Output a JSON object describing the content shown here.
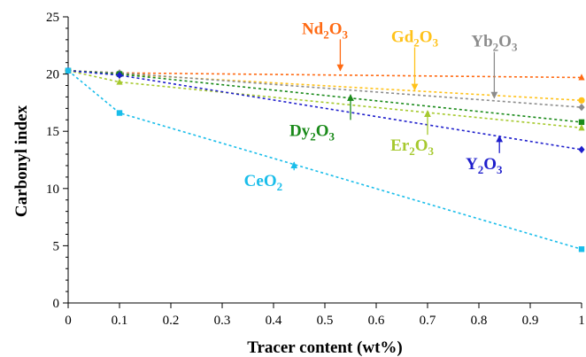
{
  "chart_data": {
    "type": "line",
    "title": "",
    "xlabel": "Tracer content (wt%)",
    "ylabel": "Carbonyl index",
    "xlim": [
      0,
      1
    ],
    "ylim": [
      0,
      25
    ],
    "x_ticks": [
      "0",
      "0.1",
      "0.2",
      "0.3",
      "0.4",
      "0.5",
      "0.6",
      "0.7",
      "0.8",
      "0.9",
      "1"
    ],
    "y_ticks": [
      "0",
      "5",
      "10",
      "15",
      "20",
      "25"
    ],
    "grid": false,
    "legend": "none (inline annotations)",
    "x": [
      0,
      0.1,
      1
    ],
    "series": [
      {
        "name": "Nd2O3",
        "label_main": "Nd",
        "label_sub1": "2",
        "label_mid": "O",
        "label_sub2": "3",
        "color": "#ff6a13",
        "marker": "triangle",
        "values": [
          20.3,
          20.1,
          19.7
        ]
      },
      {
        "name": "Gd2O3",
        "label_main": "Gd",
        "label_sub1": "2",
        "label_mid": "O",
        "label_sub2": "3",
        "color": "#ffc21a",
        "marker": "circle",
        "values": [
          20.3,
          20.0,
          17.7
        ]
      },
      {
        "name": "Yb2O3",
        "label_main": "Yb",
        "label_sub1": "2",
        "label_mid": "O",
        "label_sub2": "3",
        "color": "#8c8c8c",
        "marker": "diamond",
        "values": [
          20.3,
          20.1,
          17.1
        ]
      },
      {
        "name": "Dy2O3",
        "label_main": "Dy",
        "label_sub1": "2",
        "label_mid": "O",
        "label_sub2": "3",
        "color": "#1a8a1a",
        "marker": "square",
        "values": [
          20.3,
          20.0,
          15.8
        ]
      },
      {
        "name": "Er2O3",
        "label_main": "Er",
        "label_sub1": "2",
        "label_mid": "O",
        "label_sub2": "3",
        "color": "#a6c92e",
        "marker": "triangle",
        "values": [
          20.3,
          19.3,
          15.3
        ]
      },
      {
        "name": "Y2O3",
        "label_main": "Y",
        "label_sub1": "2",
        "label_mid": "O",
        "label_sub2": "3",
        "color": "#1f1fcc",
        "marker": "diamond",
        "values": [
          20.3,
          19.9,
          13.4
        ]
      },
      {
        "name": "CeO2",
        "label_main": "CeO",
        "label_sub1": "2",
        "label_mid": "",
        "label_sub2": "",
        "color": "#19bdea",
        "marker": "square",
        "values": [
          20.3,
          16.6,
          4.7
        ]
      }
    ],
    "annotations": [
      {
        "series": "Nd2O3",
        "label_pos": [
          0.5,
          23.5
        ],
        "arrow_to": [
          0.53,
          20.3
        ]
      },
      {
        "series": "Gd2O3",
        "label_pos": [
          0.675,
          22.8
        ],
        "arrow_to": [
          0.675,
          18.6
        ]
      },
      {
        "series": "Yb2O3",
        "label_pos": [
          0.83,
          22.4
        ],
        "arrow_to": [
          0.83,
          17.9
        ]
      },
      {
        "series": "Dy2O3",
        "label_pos": [
          0.475,
          14.6
        ],
        "arrow_to": [
          0.55,
          18.2
        ]
      },
      {
        "series": "Er2O3",
        "label_pos": [
          0.67,
          13.3
        ],
        "arrow_to": [
          0.7,
          16.8
        ]
      },
      {
        "series": "Y2O3",
        "label_pos": [
          0.81,
          11.7
        ],
        "arrow_to": [
          0.84,
          14.6
        ]
      },
      {
        "series": "CeO2",
        "label_pos": [
          0.38,
          10.2
        ],
        "arrow_to": [
          0.44,
          12.3
        ]
      }
    ]
  }
}
